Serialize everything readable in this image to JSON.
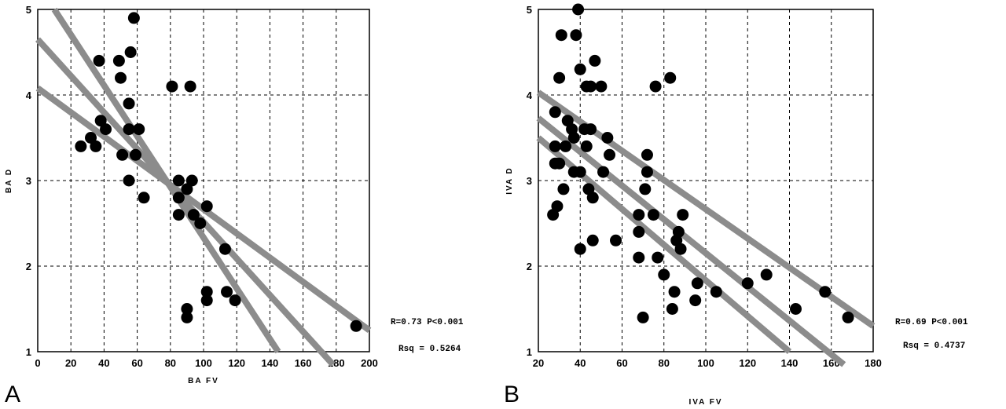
{
  "chart_data": [
    {
      "type": "scatter",
      "panel": "A",
      "xlabel": "BA FV",
      "ylabel": "BA D",
      "xlim": [
        0,
        200
      ],
      "ylim": [
        1,
        5
      ],
      "x_ticks": [
        "0",
        "20",
        "40",
        "60",
        "80",
        "100",
        "120",
        "140",
        "160",
        "180",
        "200"
      ],
      "y_ticks": [
        "1",
        "2",
        "3",
        "4",
        "5"
      ],
      "grid": true,
      "stats": [
        "R=0.73 P<0.001",
        "Rsq = 0.5264"
      ],
      "fit_lines": [
        {
          "name": "upper",
          "x1": 10,
          "y1": 5.0,
          "x2": 145,
          "y2": 1.0
        },
        {
          "name": "regression",
          "x1": 0,
          "y1": 4.65,
          "x2": 178,
          "y2": 0.85
        },
        {
          "name": "lower",
          "x1": 0,
          "y1": 4.08,
          "x2": 200,
          "y2": 1.25
        }
      ],
      "points": [
        [
          26,
          3.4
        ],
        [
          32,
          3.5
        ],
        [
          35,
          3.4
        ],
        [
          37,
          4.4
        ],
        [
          38,
          3.7
        ],
        [
          41,
          3.6
        ],
        [
          49,
          4.4
        ],
        [
          50,
          4.2
        ],
        [
          51,
          3.3
        ],
        [
          55,
          3.9
        ],
        [
          55,
          3.6
        ],
        [
          55,
          3.0
        ],
        [
          56,
          4.5
        ],
        [
          58,
          4.9
        ],
        [
          59,
          3.3
        ],
        [
          61,
          3.6
        ],
        [
          64,
          2.8
        ],
        [
          81,
          4.1
        ],
        [
          85,
          2.8
        ],
        [
          85,
          2.6
        ],
        [
          85,
          3.0
        ],
        [
          90,
          2.9
        ],
        [
          90,
          1.5
        ],
        [
          90,
          1.4
        ],
        [
          92,
          4.1
        ],
        [
          93,
          3.0
        ],
        [
          94,
          2.6
        ],
        [
          98,
          2.5
        ],
        [
          102,
          2.7
        ],
        [
          102,
          1.7
        ],
        [
          102,
          1.6
        ],
        [
          113,
          2.2
        ],
        [
          114,
          1.7
        ],
        [
          119,
          1.6
        ],
        [
          192,
          1.3
        ]
      ]
    },
    {
      "type": "scatter",
      "panel": "B",
      "xlabel": "IVA FV",
      "ylabel": "IVA D",
      "xlim": [
        20,
        180
      ],
      "ylim": [
        1,
        5
      ],
      "x_ticks": [
        "20",
        "40",
        "60",
        "80",
        "100",
        "120",
        "140",
        "160",
        "180"
      ],
      "y_ticks": [
        "1",
        "2",
        "3",
        "4",
        "5"
      ],
      "grid": true,
      "stats": [
        "R=0.69 P<0.001",
        "Rsq = 0.4737"
      ],
      "fit_lines": [
        {
          "name": "upper",
          "x1": 20,
          "y1": 4.03,
          "x2": 180,
          "y2": 1.3
        },
        {
          "name": "regression",
          "x1": 20,
          "y1": 3.73,
          "x2": 166,
          "y2": 0.85
        },
        {
          "name": "lower",
          "x1": 20,
          "y1": 3.5,
          "x2": 140,
          "y2": 1.0
        }
      ],
      "points": [
        [
          27,
          2.6
        ],
        [
          28,
          3.8
        ],
        [
          28,
          3.4
        ],
        [
          28,
          3.2
        ],
        [
          29,
          2.7
        ],
        [
          30,
          3.2
        ],
        [
          30,
          4.2
        ],
        [
          31,
          4.7
        ],
        [
          32,
          2.9
        ],
        [
          33,
          3.4
        ],
        [
          34,
          3.7
        ],
        [
          36,
          3.6
        ],
        [
          37,
          3.1
        ],
        [
          37,
          3.5
        ],
        [
          38,
          4.7
        ],
        [
          39,
          5.0
        ],
        [
          40,
          3.1
        ],
        [
          40,
          4.3
        ],
        [
          40,
          2.2
        ],
        [
          42,
          3.6
        ],
        [
          43,
          4.1
        ],
        [
          43,
          3.4
        ],
        [
          44,
          2.9
        ],
        [
          45,
          4.1
        ],
        [
          45,
          3.6
        ],
        [
          46,
          2.8
        ],
        [
          46,
          2.3
        ],
        [
          47,
          4.4
        ],
        [
          50,
          4.1
        ],
        [
          51,
          3.1
        ],
        [
          53,
          3.5
        ],
        [
          54,
          3.3
        ],
        [
          57,
          2.3
        ],
        [
          68,
          2.6
        ],
        [
          68,
          2.4
        ],
        [
          68,
          2.1
        ],
        [
          70,
          1.4
        ],
        [
          71,
          2.9
        ],
        [
          72,
          3.3
        ],
        [
          72,
          3.1
        ],
        [
          75,
          2.6
        ],
        [
          76,
          4.1
        ],
        [
          77,
          2.1
        ],
        [
          80,
          1.9
        ],
        [
          83,
          4.2
        ],
        [
          84,
          1.5
        ],
        [
          85,
          1.7
        ],
        [
          86,
          2.3
        ],
        [
          87,
          2.4
        ],
        [
          88,
          2.2
        ],
        [
          89,
          2.6
        ],
        [
          95,
          1.6
        ],
        [
          96,
          1.8
        ],
        [
          105,
          1.7
        ],
        [
          120,
          1.8
        ],
        [
          129,
          1.9
        ],
        [
          143,
          1.5
        ],
        [
          157,
          1.7
        ],
        [
          168,
          1.4
        ]
      ]
    }
  ],
  "panel_labels": {
    "a": "A",
    "b": "B"
  }
}
